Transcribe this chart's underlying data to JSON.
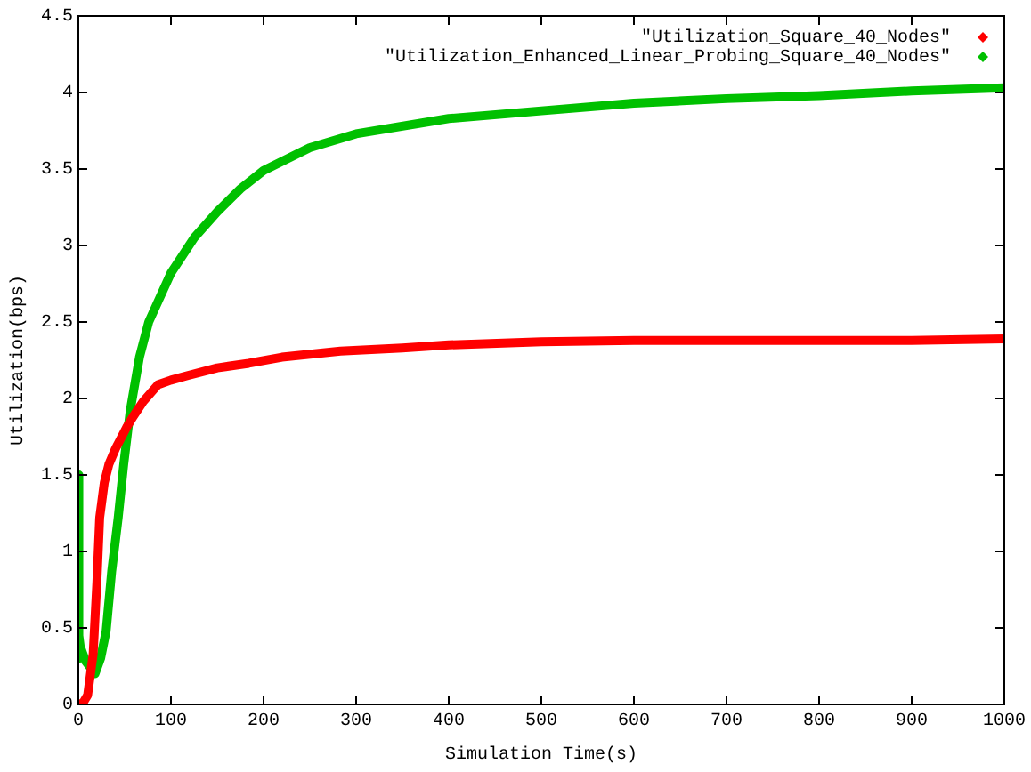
{
  "chart_data": {
    "type": "line",
    "xlabel": "Simulation Time(s)",
    "ylabel": "Utilization(bps)",
    "xlim": [
      0,
      1000
    ],
    "ylim": [
      0,
      4.5
    ],
    "xticks": [
      0,
      100,
      200,
      300,
      400,
      500,
      600,
      700,
      800,
      900,
      1000
    ],
    "yticks": [
      0,
      0.5,
      1,
      1.5,
      2,
      2.5,
      3,
      3.5,
      4,
      4.5
    ],
    "grid": false,
    "legend": "top right",
    "marker": "none",
    "series": [
      {
        "name": "\"Utilization_Square_40_Nodes\"",
        "color": "#ff0000",
        "x": [
          0,
          5,
          10,
          16,
          20,
          23,
          28,
          33,
          40,
          46,
          52,
          59,
          70,
          86,
          100,
          118,
          150,
          184,
          220,
          283,
          350,
          400,
          500,
          600,
          700,
          800,
          900,
          1000
        ],
        "values": [
          0,
          0.01,
          0.06,
          0.33,
          0.8,
          1.22,
          1.45,
          1.57,
          1.67,
          1.74,
          1.81,
          1.88,
          1.98,
          2.09,
          2.12,
          2.15,
          2.2,
          2.23,
          2.27,
          2.31,
          2.33,
          2.35,
          2.37,
          2.38,
          2.38,
          2.38,
          2.38,
          2.39
        ]
      },
      {
        "name": "\"Utilization_Enhanced_Linear_Probing_Square_40_Nodes\"",
        "color": "#00c000",
        "x": [
          0,
          0,
          1,
          2,
          8,
          18,
          24,
          30,
          36,
          43,
          49,
          56,
          66,
          76,
          100,
          125,
          150,
          175,
          200,
          250,
          300,
          400,
          500,
          600,
          700,
          800,
          900,
          1000
        ],
        "values": [
          0.3,
          1.5,
          0.45,
          0.38,
          0.28,
          0.2,
          0.3,
          0.48,
          0.87,
          1.22,
          1.57,
          1.92,
          2.27,
          2.5,
          2.82,
          3.05,
          3.22,
          3.37,
          3.49,
          3.64,
          3.73,
          3.83,
          3.88,
          3.93,
          3.96,
          3.98,
          4.01,
          4.03
        ]
      }
    ]
  }
}
